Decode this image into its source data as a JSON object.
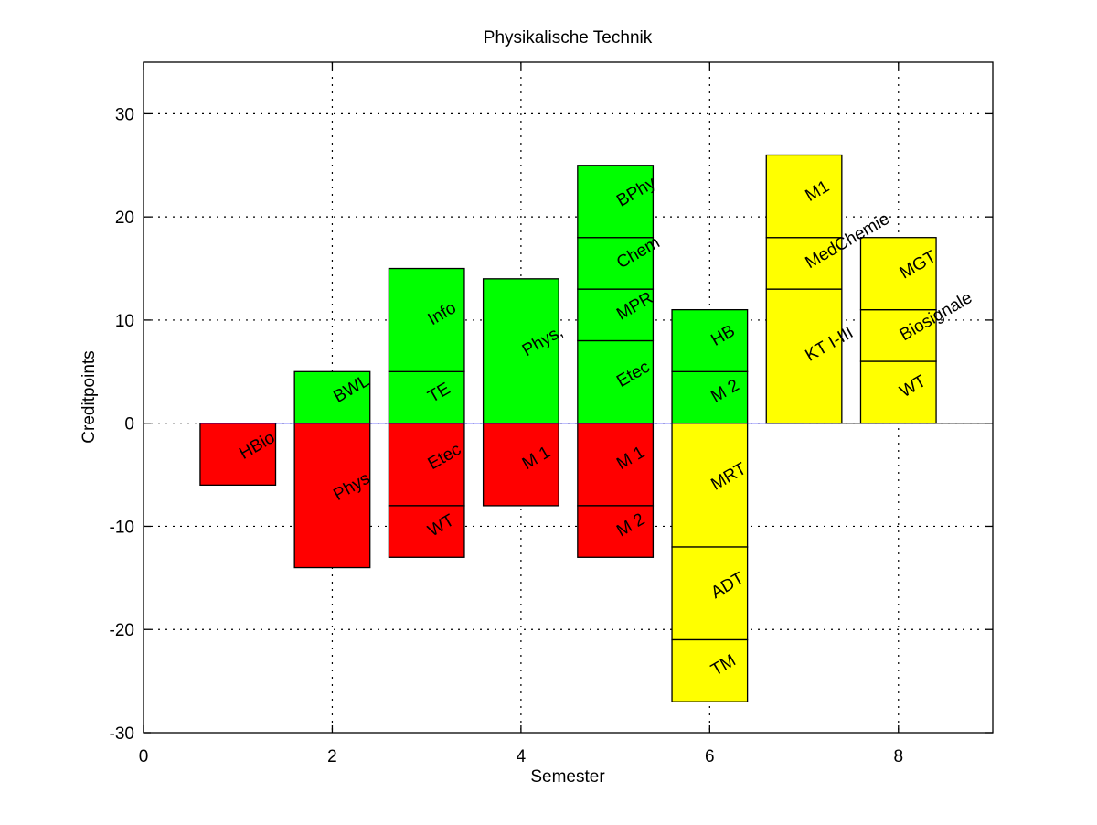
{
  "chart_data": {
    "type": "bar",
    "title": "Physikalische Technik",
    "xlabel": "Semester",
    "ylabel": "Creditpoints",
    "xlim": [
      0,
      9
    ],
    "ylim": [
      -30,
      35
    ],
    "xticks": [
      0,
      2,
      4,
      6,
      8
    ],
    "xtick_labels": [
      "0",
      "2",
      "4",
      "6",
      "8"
    ],
    "yticks": [
      -30,
      -20,
      -10,
      0,
      10,
      20,
      30
    ],
    "ytick_labels": [
      "-30",
      "-20",
      "-10",
      "0",
      "10",
      "20",
      "30"
    ],
    "grid": true,
    "bar_width": 0.8,
    "zero_line_from_x": 0.6,
    "colors": {
      "green": "#00ff00",
      "red": "#ff0000",
      "yellow": "#ffff00",
      "zero_line": "#0000ff"
    },
    "bars": [
      {
        "x": 1,
        "segments": [
          {
            "label": "HBio",
            "from": 0,
            "to": -6,
            "color": "red"
          }
        ]
      },
      {
        "x": 2,
        "segments": [
          {
            "label": "BWL",
            "from": 0,
            "to": 5,
            "color": "green"
          },
          {
            "label": "Phys",
            "from": 0,
            "to": -14,
            "color": "red"
          }
        ]
      },
      {
        "x": 3,
        "segments": [
          {
            "label": "TE",
            "from": 0,
            "to": 5,
            "color": "green"
          },
          {
            "label": "Info",
            "from": 5,
            "to": 15,
            "color": "green"
          },
          {
            "label": "Etec",
            "from": 0,
            "to": -8,
            "color": "red"
          },
          {
            "label": "WT",
            "from": -8,
            "to": -13,
            "color": "red"
          }
        ]
      },
      {
        "x": 4,
        "segments": [
          {
            "label": "Phys,",
            "from": 0,
            "to": 14,
            "color": "green"
          },
          {
            "label": "M 1",
            "from": 0,
            "to": -8,
            "color": "red"
          }
        ]
      },
      {
        "x": 5,
        "segments": [
          {
            "label": "Etec",
            "from": 0,
            "to": 8,
            "color": "green"
          },
          {
            "label": "MPR",
            "from": 8,
            "to": 13,
            "color": "green"
          },
          {
            "label": "Chem",
            "from": 13,
            "to": 18,
            "color": "green"
          },
          {
            "label": "BPhy",
            "from": 18,
            "to": 25,
            "color": "green"
          },
          {
            "label": "M 1",
            "from": 0,
            "to": -8,
            "color": "red"
          },
          {
            "label": "M 2",
            "from": -8,
            "to": -13,
            "color": "red"
          }
        ]
      },
      {
        "x": 6,
        "segments": [
          {
            "label": "M 2",
            "from": 0,
            "to": 5,
            "color": "green"
          },
          {
            "label": "HB",
            "from": 5,
            "to": 11,
            "color": "green"
          },
          {
            "label": "MRT",
            "from": 0,
            "to": -12,
            "color": "yellow"
          },
          {
            "label": "ADT",
            "from": -12,
            "to": -21,
            "color": "yellow"
          },
          {
            "label": "TM",
            "from": -21,
            "to": -27,
            "color": "yellow"
          }
        ]
      },
      {
        "x": 7,
        "segments": [
          {
            "label": "KT I-III",
            "from": 0,
            "to": 13,
            "color": "yellow"
          },
          {
            "label": "MedChemie",
            "from": 13,
            "to": 18,
            "color": "yellow"
          },
          {
            "label": "M1",
            "from": 18,
            "to": 26,
            "color": "yellow"
          }
        ]
      },
      {
        "x": 8,
        "segments": [
          {
            "label": "WT",
            "from": 0,
            "to": 6,
            "color": "yellow"
          },
          {
            "label": "Biosignale",
            "from": 6,
            "to": 11,
            "color": "yellow"
          },
          {
            "label": "MGT",
            "from": 11,
            "to": 18,
            "color": "yellow"
          }
        ]
      }
    ]
  }
}
